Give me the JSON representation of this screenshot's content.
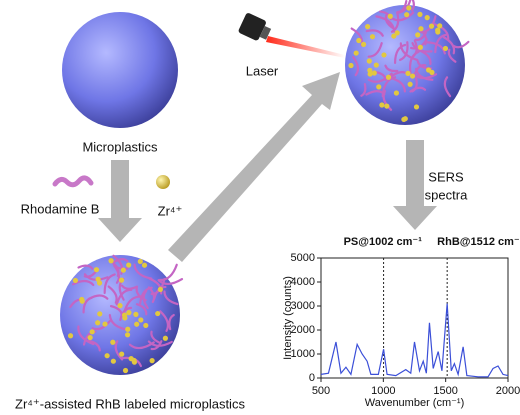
{
  "labels": {
    "microplastics": "Microplastics",
    "rhodamine": "Rhodamine B",
    "zr": "Zr⁴⁺",
    "laser": "Laser",
    "sers_1": "SERS",
    "sers_2": "spectra",
    "product": "Zr⁴⁺-assisted RhB labeled microplastics"
  },
  "spectrum": {
    "type": "line",
    "xlabel": "Wavenumber (cm⁻¹)",
    "ylabel": "Intensity (counts)",
    "color": "#3b4fd8",
    "annotations": [
      {
        "text": "PS@1002 cm⁻¹",
        "x": 1002
      },
      {
        "text": "RhB@1512 cm⁻¹",
        "x": 1512
      }
    ],
    "x": [
      500,
      560,
      620,
      660,
      700,
      740,
      790,
      830,
      870,
      900,
      960,
      1002,
      1030,
      1100,
      1180,
      1220,
      1250,
      1290,
      1320,
      1345,
      1370,
      1400,
      1440,
      1470,
      1512,
      1545,
      1570,
      1600,
      1640,
      1670,
      1760,
      1840,
      1880,
      1920,
      1960,
      2000
    ],
    "values": [
      150,
      200,
      1500,
      200,
      450,
      150,
      1400,
      1000,
      700,
      150,
      150,
      1200,
      150,
      100,
      350,
      200,
      1500,
      300,
      700,
      200,
      2300,
      400,
      1100,
      300,
      3100,
      300,
      600,
      150,
      1300,
      100,
      50,
      50,
      400,
      500,
      150,
      100
    ],
    "xlim": [
      500,
      2000
    ],
    "xticks": [
      500,
      1000,
      1500,
      2000
    ],
    "ylim": [
      0,
      5000
    ],
    "yticks": [
      0,
      1000,
      2000,
      3000,
      4000,
      5000
    ]
  }
}
